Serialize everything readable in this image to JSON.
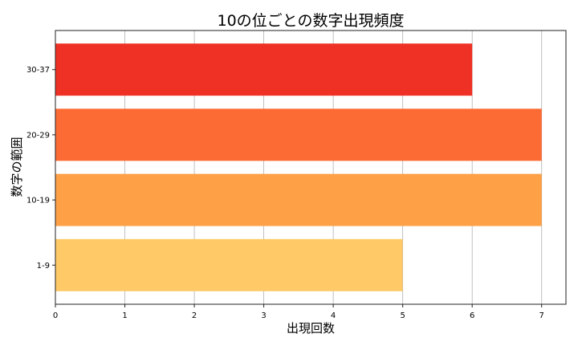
{
  "chart_data": {
    "type": "bar",
    "orientation": "horizontal",
    "title": "10の位ごとの数字出現頻度",
    "xlabel": "出現回数",
    "ylabel": "数字の範囲",
    "categories": [
      "1-9",
      "10-19",
      "20-29",
      "30-37"
    ],
    "values": [
      5,
      7,
      7,
      6
    ],
    "colors": [
      "#fec966",
      "#fda046",
      "#fc6b33",
      "#ee3124"
    ],
    "xlim": [
      0,
      7.35
    ],
    "xticks": [
      "0",
      "1",
      "2",
      "3",
      "4",
      "5",
      "6",
      "7"
    ],
    "grid": "x"
  }
}
